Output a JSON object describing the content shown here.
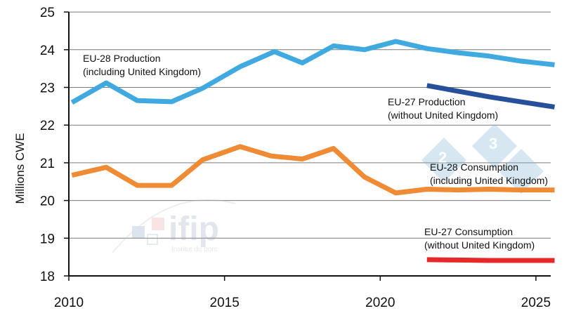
{
  "chart_data": {
    "type": "line",
    "title": "",
    "xlabel": "",
    "ylabel": "Millions CWE",
    "xlim": [
      2010,
      2026
    ],
    "ylim": [
      18,
      25
    ],
    "x_ticks": [
      "2010",
      "2015",
      "2020",
      "2025"
    ],
    "y_ticks": [
      "18",
      "19",
      "20",
      "21",
      "22",
      "23",
      "24",
      "25"
    ],
    "grid": "horizontal",
    "series": [
      {
        "name": "EU-28 Production (including United Kingdom)",
        "color": "#3fa9e0",
        "points": [
          [
            2010.1,
            22.6
          ],
          [
            2011.2,
            23.12
          ],
          [
            2012.2,
            22.65
          ],
          [
            2013.3,
            22.62
          ],
          [
            2014.3,
            22.98
          ],
          [
            2015.5,
            23.55
          ],
          [
            2016.6,
            23.95
          ],
          [
            2017.5,
            23.65
          ],
          [
            2018.5,
            24.1
          ],
          [
            2019.5,
            24.0
          ],
          [
            2020.5,
            24.22
          ],
          [
            2021.5,
            24.03
          ],
          [
            2022.5,
            23.92
          ],
          [
            2023.5,
            23.83
          ],
          [
            2024.5,
            23.7
          ],
          [
            2025.6,
            23.6
          ]
        ]
      },
      {
        "name": "EU-27 Production (without United Kingdom)",
        "color": "#27509a",
        "points": [
          [
            2021.5,
            23.05
          ],
          [
            2022.5,
            22.9
          ],
          [
            2023.5,
            22.75
          ],
          [
            2024.5,
            22.62
          ],
          [
            2025.6,
            22.48
          ]
        ]
      },
      {
        "name": "EU-28 Consumption (including United Kingdom)",
        "color": "#ef8a35",
        "points": [
          [
            2010.1,
            20.67
          ],
          [
            2011.2,
            20.88
          ],
          [
            2012.2,
            20.4
          ],
          [
            2013.3,
            20.4
          ],
          [
            2014.3,
            21.08
          ],
          [
            2015.5,
            21.43
          ],
          [
            2016.5,
            21.18
          ],
          [
            2017.5,
            21.1
          ],
          [
            2018.5,
            21.38
          ],
          [
            2019.5,
            20.62
          ],
          [
            2020.5,
            20.2
          ],
          [
            2021.5,
            20.3
          ],
          [
            2022.5,
            20.28
          ],
          [
            2023.5,
            20.3
          ],
          [
            2024.5,
            20.28
          ],
          [
            2025.6,
            20.28
          ]
        ]
      },
      {
        "name": "EU-27 Consumption (without United Kingdom)",
        "color": "#e62828",
        "points": [
          [
            2021.5,
            18.43
          ],
          [
            2022.5,
            18.42
          ],
          [
            2023.5,
            18.41
          ],
          [
            2024.5,
            18.41
          ],
          [
            2025.6,
            18.41
          ]
        ]
      }
    ],
    "annotations": [
      {
        "series": 0,
        "line1": "EU-28 Production",
        "line2": "(including United Kingdom)"
      },
      {
        "series": 1,
        "line1": "EU-27 Production",
        "line2": "(without United Kingdom)"
      },
      {
        "series": 2,
        "line1": "EU-28 Consumption",
        "line2": "(including United Kingdom)"
      },
      {
        "series": 3,
        "line1": "EU-27 Consumption",
        "line2": "(without United Kingdom)"
      }
    ]
  },
  "watermark": {
    "brand": "ifip",
    "tagline": "Institut du porc",
    "badge_digits": [
      "2",
      "3"
    ]
  }
}
